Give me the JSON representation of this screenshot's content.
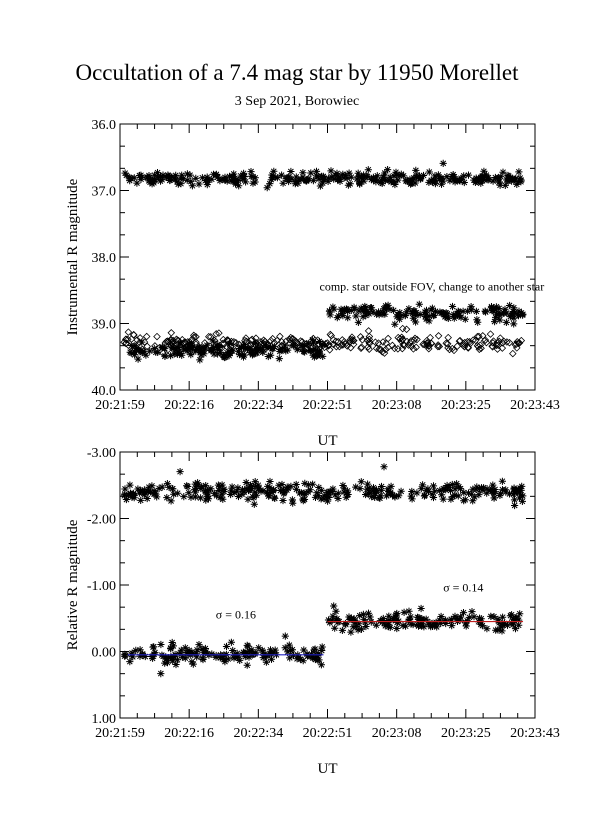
{
  "figure": {
    "title": "Occultation of a 7.4 mag star by 11950 Morellet",
    "subtitle": "3 Sep 2021, Borowiec"
  },
  "chart_data": [
    {
      "type": "scatter",
      "ylabel": "Instrumental R magnitude",
      "xlabel": "UT",
      "ylim": [
        40.0,
        36.0
      ],
      "y_inverted": true,
      "xlim": [
        "20:21:59",
        "20:23:43"
      ],
      "x_tick_labels": [
        "20:21:59",
        "20:22:16",
        "20:22:34",
        "20:22:51",
        "20:23:08",
        "20:23:25",
        "20:23:43"
      ],
      "y_tick_labels": [
        "36.0",
        "37.0",
        "38.0",
        "39.0",
        "40.0"
      ],
      "annotations": [
        {
          "text": "comp. star outside FOV, change to another star",
          "x": "20:22:51",
          "y": 38.5
        }
      ],
      "series": [
        {
          "marker": "star",
          "segments": [
            {
              "x_start": "20:22:00",
              "x_end": "20:23:40",
              "y_mean": 36.82,
              "scatter": 0.08
            }
          ]
        },
        {
          "marker": "star",
          "segments": [
            {
              "x_start": "20:22:00",
              "x_end": "20:22:50",
              "y_mean": 39.4,
              "scatter": 0.1
            },
            {
              "x_start": "20:22:51",
              "x_end": "20:23:40",
              "y_mean": 38.85,
              "scatter": 0.1
            }
          ]
        },
        {
          "marker": "diamond",
          "segments": [
            {
              "x_start": "20:22:00",
              "x_end": "20:23:40",
              "y_mean": 39.3,
              "scatter": 0.1
            }
          ]
        }
      ]
    },
    {
      "type": "scatter",
      "ylabel": "Relative R magnitude",
      "xlabel": "UT",
      "ylim": [
        1.0,
        -3.0
      ],
      "y_inverted": true,
      "xlim": [
        "20:21:59",
        "20:23:43"
      ],
      "x_tick_labels": [
        "20:21:59",
        "20:22:16",
        "20:22:34",
        "20:22:51",
        "20:23:08",
        "20:23:25",
        "20:23:43"
      ],
      "y_tick_labels": [
        "-3.00",
        "-2.00",
        "-1.00",
        "0.00",
        "1.00"
      ],
      "annotations": [
        {
          "text": "σ = 0.16",
          "x": "20:22:25",
          "y": -0.5
        },
        {
          "text": "σ = 0.14",
          "x": "20:23:22",
          "y": -0.9
        }
      ],
      "series": [
        {
          "marker": "star",
          "segments": [
            {
              "x_start": "20:22:00",
              "x_end": "20:23:40",
              "y_mean": -2.4,
              "scatter": 0.12
            }
          ]
        },
        {
          "marker": "star",
          "segments": [
            {
              "x_start": "20:22:00",
              "x_end": "20:22:50",
              "y_mean": 0.05,
              "scatter": 0.12
            },
            {
              "x_start": "20:22:51",
              "x_end": "20:23:40",
              "y_mean": -0.45,
              "scatter": 0.12
            }
          ]
        }
      ],
      "mean_lines": [
        {
          "x_start": "20:22:01",
          "x_end": "20:22:50",
          "y": 0.05,
          "color": "#2020c0"
        },
        {
          "x_start": "20:22:51",
          "x_end": "20:23:40",
          "y": -0.45,
          "color": "#c02020"
        }
      ]
    }
  ]
}
